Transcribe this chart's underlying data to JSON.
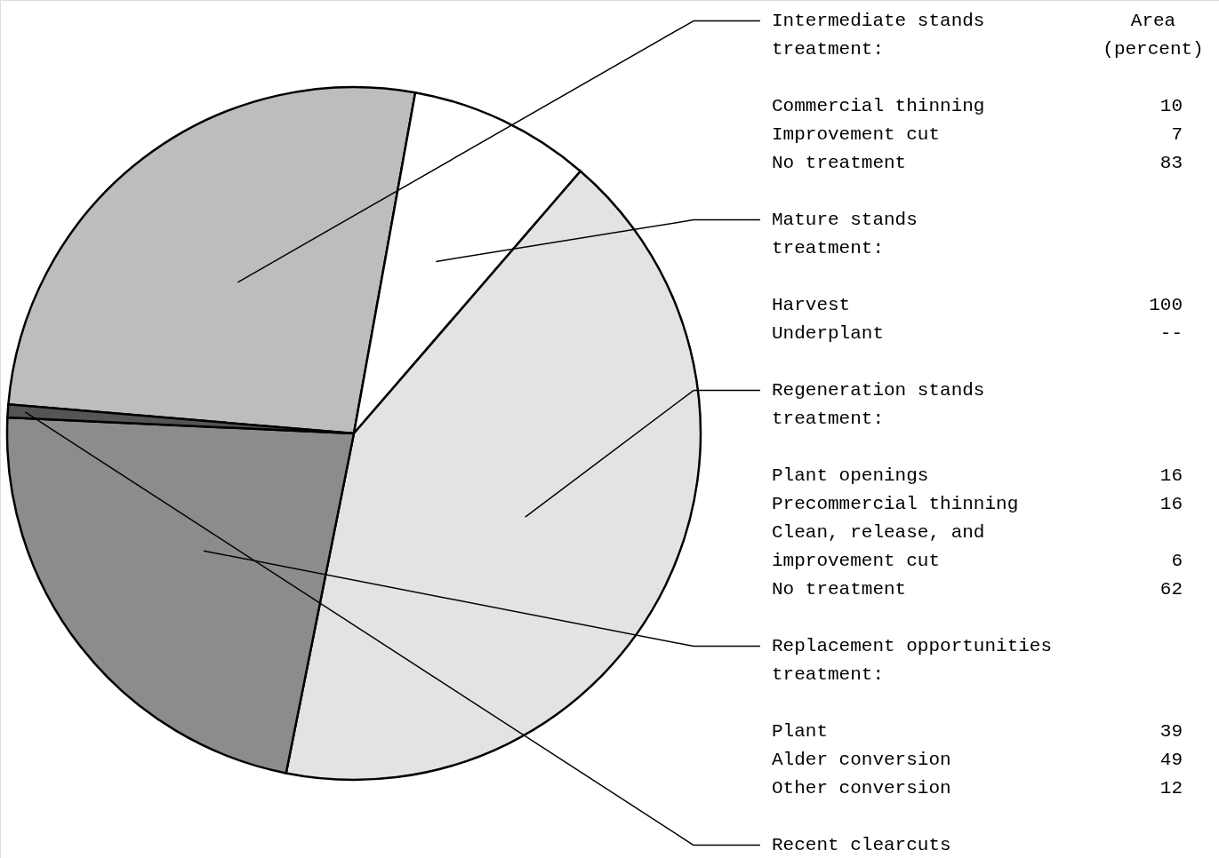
{
  "chart_data": {
    "type": "pie",
    "categories": [
      "Intermediate stands",
      "Mature stands",
      "Regeneration stands",
      "Replacement opportunities",
      "Recent clearcuts"
    ],
    "values": [
      26.5,
      8.5,
      41.8,
      22.6,
      0.6
    ],
    "colors": [
      "#bdbdbd",
      "#ffffff",
      "#e3e3e3",
      "#8c8c8c",
      "#555555"
    ],
    "legend": "right",
    "annotations": [
      "Area\n(percent)",
      "treatment:",
      "Commercial thinning\t10",
      "Improvement cut\t7",
      "No treatment\t83",
      "treatment:",
      "Harvest\t100",
      "Underplant\t--",
      "treatment:",
      "Plant openings\t16",
      "Precommercial thinning\t16",
      "Clean, release, and\n  improvement cut\t6",
      "No treatment\t62",
      "treatment:",
      "Plant\t39",
      "Alder conversion\t49",
      "Other conversion\t12"
    ]
  }
}
